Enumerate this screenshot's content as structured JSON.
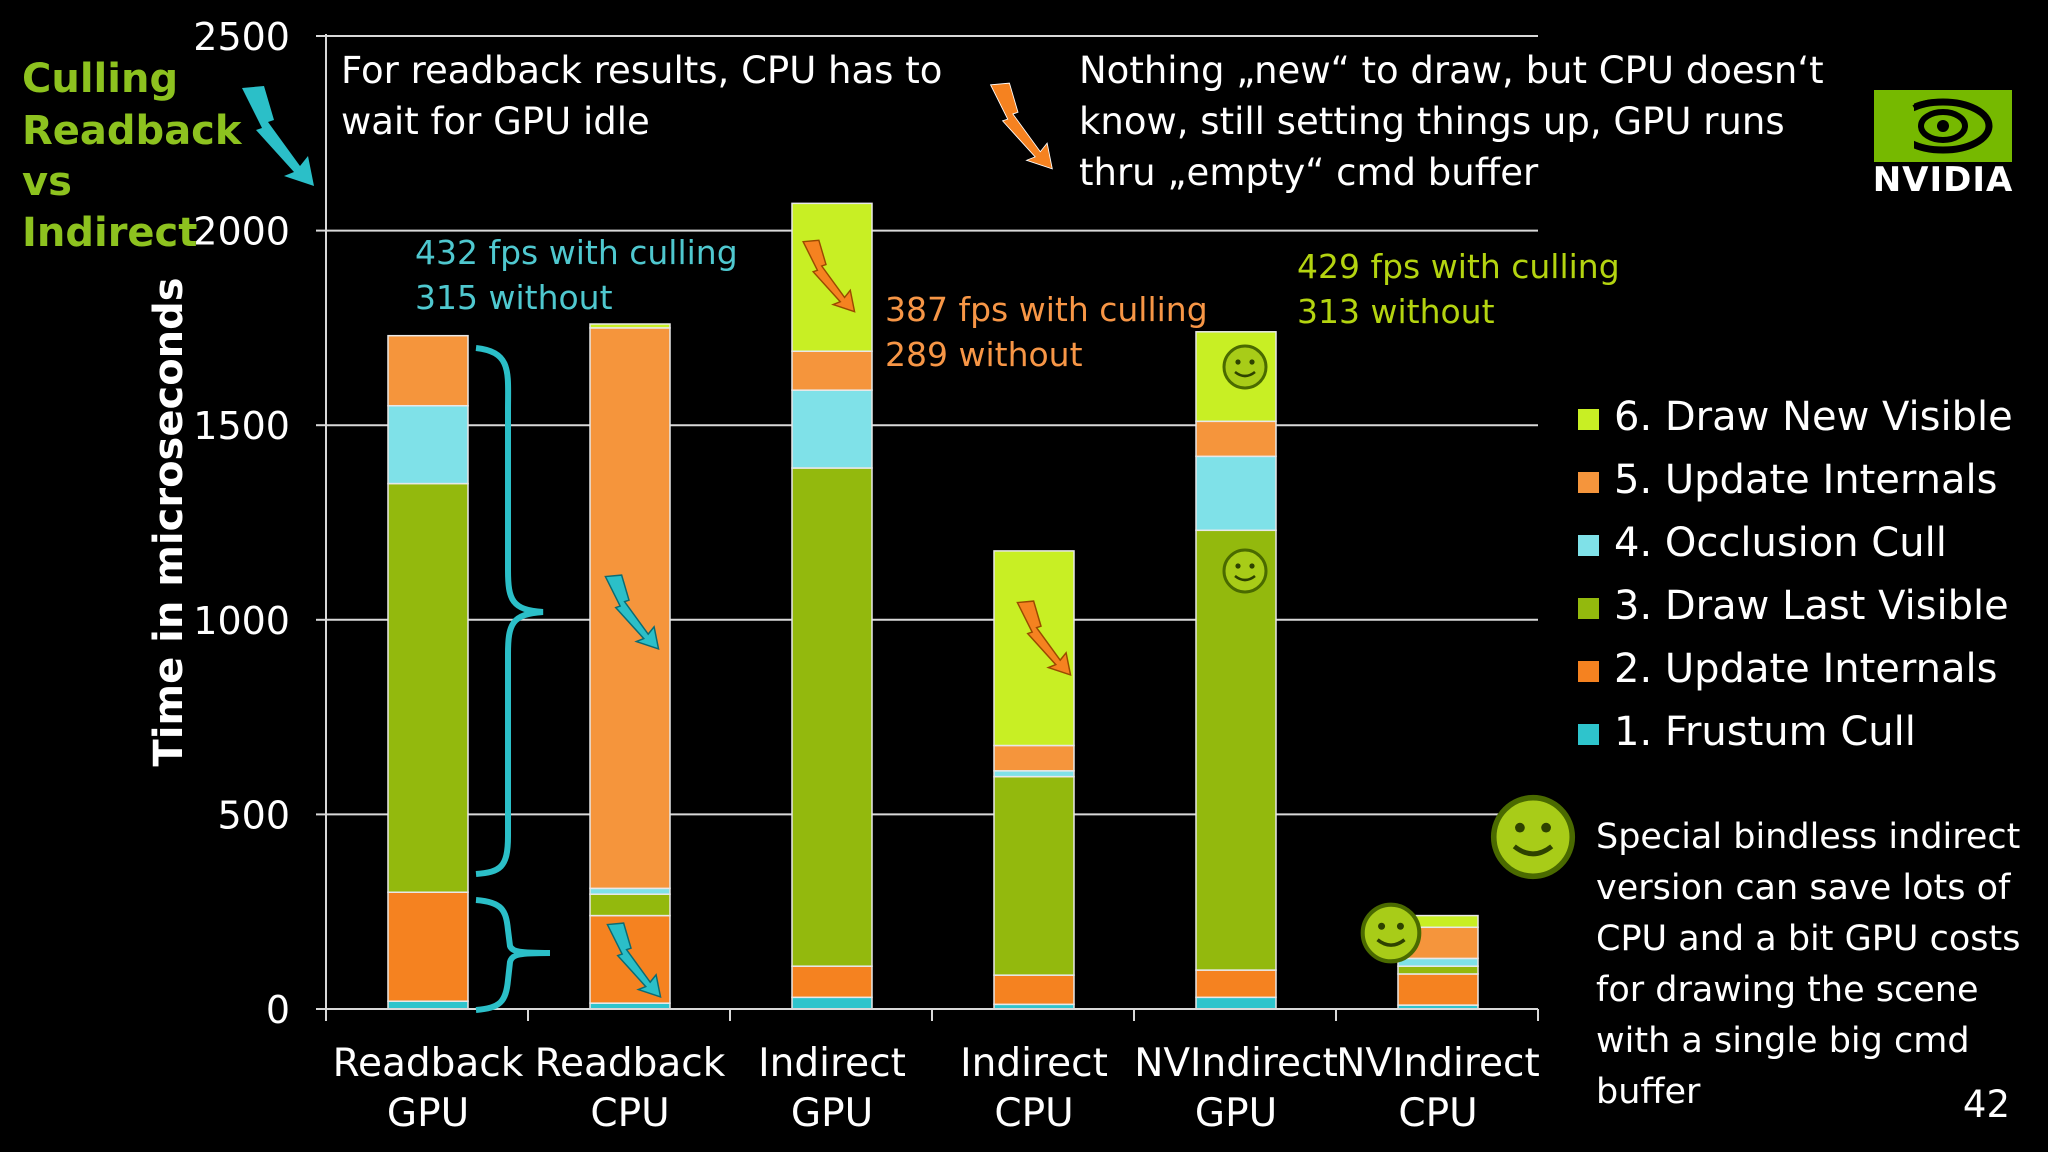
{
  "slide": {
    "title_lines": [
      "Culling",
      "Readback",
      "vs",
      "Indirect"
    ],
    "page_number": "42",
    "logo_text": "NVIDIA",
    "note_left": [
      "For readback results, CPU has to",
      "wait for GPU idle"
    ],
    "note_right": [
      "Nothing „new“ to draw, but CPU doesn‘t",
      "know, still setting things up, GPU runs",
      "thru „empty“ cmd buffer"
    ],
    "fps_readback": [
      "432 fps with culling",
      "315 without"
    ],
    "fps_indirect": [
      "387 fps with culling",
      "289 without"
    ],
    "fps_nvindirect": [
      "429 fps with culling",
      "313 without"
    ],
    "special_note": [
      "Special bindless indirect",
      "version can save lots of",
      "CPU and a bit GPU costs",
      "for drawing the scene",
      "with a single big cmd",
      "buffer"
    ]
  },
  "colors": {
    "background": "#000000",
    "title": "#8dc21f",
    "fps_readback": "#4fc8cf",
    "fps_indirect": "#f79646",
    "fps_nvindirect": "#b4d410",
    "lightning_cyan": "#2bbfc8",
    "lightning_orange": "#f58220"
  },
  "chart_data": {
    "type": "bar",
    "stacked": true,
    "ylabel": "Time in microseconds",
    "ylim": [
      0,
      2500
    ],
    "yticks": [
      0,
      500,
      1000,
      1500,
      2000,
      2500
    ],
    "grid": true,
    "legend_position": "right",
    "categories": [
      "Readback\nGPU",
      "Readback\nCPU",
      "Indirect\nGPU",
      "Indirect\nCPU",
      "NVIndirect\nGPU",
      "NVIndirect\nCPU"
    ],
    "series": [
      {
        "name": "1. Frustum Cull",
        "color": "#2ec4cc",
        "values": [
          20,
          15,
          30,
          12,
          30,
          10
        ]
      },
      {
        "name": "2. Update Internals",
        "color": "#f58220",
        "values": [
          280,
          225,
          80,
          75,
          70,
          80
        ]
      },
      {
        "name": "3. Draw Last Visible",
        "color": "#93b90d",
        "values": [
          1050,
          55,
          1280,
          510,
          1130,
          20
        ]
      },
      {
        "name": "4. Occlusion Cull",
        "color": "#7fe1e8",
        "values": [
          200,
          15,
          200,
          15,
          190,
          20
        ]
      },
      {
        "name": "5. Update Internals",
        "color": "#f5953c",
        "values": [
          180,
          1440,
          100,
          65,
          90,
          80
        ]
      },
      {
        "name": "6. Draw New Visible",
        "color": "#c8ef24",
        "values": [
          0,
          10,
          380,
          500,
          230,
          30
        ]
      }
    ],
    "legend_order": [
      5,
      4,
      3,
      2,
      1,
      0
    ]
  }
}
